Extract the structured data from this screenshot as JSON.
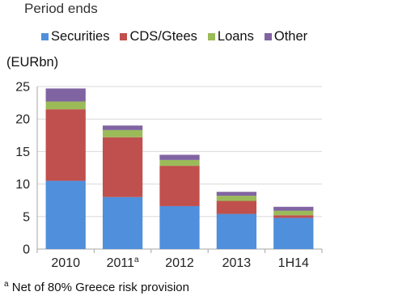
{
  "chart_data": {
    "type": "bar",
    "stacked": true,
    "title": "Period ends",
    "unit_label": "(EURbn)",
    "categories": [
      "2010",
      "2011",
      "2012",
      "2013",
      "1H14"
    ],
    "category_superscripts": [
      "",
      "a",
      "",
      "",
      ""
    ],
    "ylim": [
      0,
      25
    ],
    "yticks": [
      0,
      5,
      10,
      15,
      20,
      25
    ],
    "grid": true,
    "legend_position": "top",
    "series": [
      {
        "name": "Securities",
        "color": "#4f8fdb",
        "values": [
          10.5,
          8.0,
          6.6,
          5.4,
          4.8
        ]
      },
      {
        "name": "CDS/Gtees",
        "color": "#c0504d",
        "values": [
          11.0,
          9.2,
          6.2,
          2.0,
          0.4
        ]
      },
      {
        "name": "Loans",
        "color": "#9bbb59",
        "values": [
          1.2,
          1.1,
          0.9,
          0.8,
          0.7
        ]
      },
      {
        "name": "Other",
        "color": "#8064a2",
        "values": [
          2.0,
          0.7,
          0.8,
          0.6,
          0.6
        ]
      }
    ],
    "footnote": {
      "marker": "a",
      "text": "Net of 80% Greece risk provision"
    }
  }
}
